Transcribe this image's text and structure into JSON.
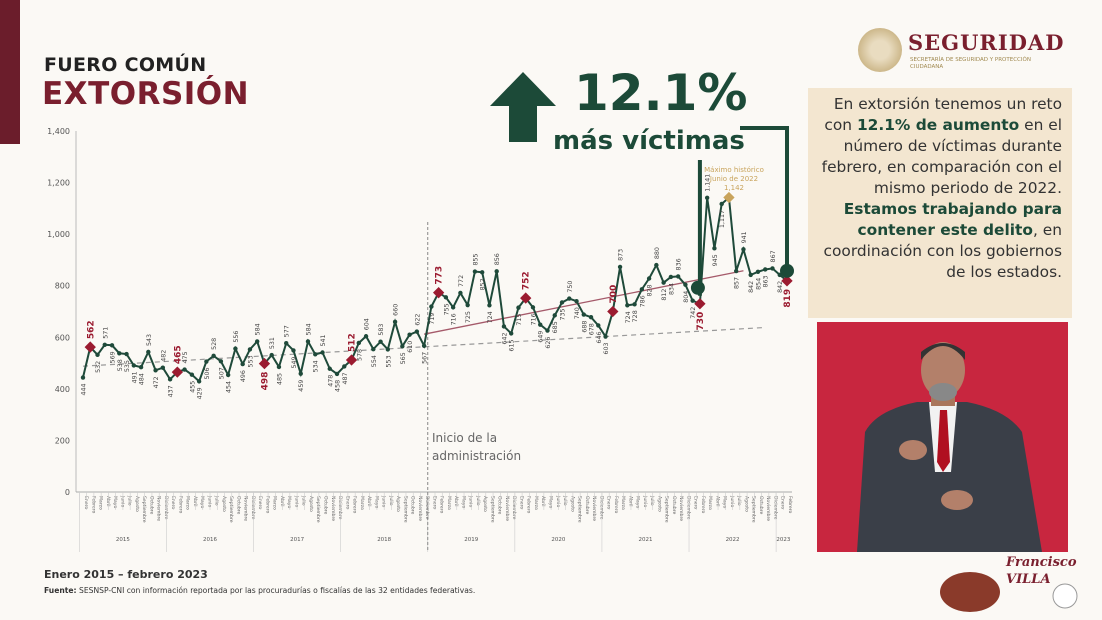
{
  "header": {
    "kicker": "FUERO COMÚN",
    "title": "EXTORSIÓN"
  },
  "logo": {
    "word": "SEGURIDAD",
    "subtitle": "SECRETARÍA DE SEGURIDAD Y PROTECCIÓN CIUDADANA"
  },
  "callout": {
    "percent": "12.1%",
    "label": "más víctimas",
    "arrow_icon": "arrow-up-icon"
  },
  "side_text": {
    "part1": "En extorsión tenemos un reto con ",
    "bold1": "12.1% de aumento",
    "part2": " en el número de víctimas durante febrero, en comparación con el mismo periodo de 2022. ",
    "bold2": "Estamos trabajando para contener este delito",
    "part3": ", en coordinación con los gobiernos de los estados."
  },
  "footer": {
    "range": "Enero 2015 – febrero 2023",
    "source_label": "Fuente:",
    "source": " SESNSP-CNI con información reportada por las procuradurías o fiscalías de las 32 entidades federativas."
  },
  "brand2": {
    "text": "Francisco VILLA"
  },
  "colors": {
    "line": "#1f4a3a",
    "highlight": "#9b1b30",
    "trend": "#a55a6a",
    "peak": "#c9a45c",
    "accent": "#1c4a38"
  },
  "chart_data": {
    "type": "line",
    "ylim": [
      0,
      1400
    ],
    "yticks": [
      0,
      200,
      400,
      600,
      800,
      1000,
      1200,
      1400
    ],
    "ytick_labels": [
      "0",
      "200",
      "400",
      "600",
      "800",
      "1,000",
      "1,200",
      "1,400"
    ],
    "years": [
      "2015",
      "2016",
      "2017",
      "2018",
      "2019",
      "2020",
      "2021",
      "2022",
      "2023"
    ],
    "months": [
      "Enero",
      "Febrero",
      "Marzo",
      "Abril",
      "Mayo",
      "Junio",
      "Julio",
      "Agosto",
      "Septiembre",
      "Octubre",
      "Noviembre",
      "Diciembre"
    ],
    "values": [
      444,
      562,
      532,
      571,
      569,
      538,
      535,
      491,
      484,
      543,
      472,
      482,
      437,
      465,
      475,
      455,
      429,
      506,
      528,
      507,
      454,
      556,
      496,
      553,
      584,
      498,
      531,
      485,
      577,
      549,
      459,
      584,
      534,
      541,
      478,
      458,
      487,
      512,
      578,
      604,
      554,
      583,
      553,
      660,
      565,
      610,
      622,
      567,
      719,
      773,
      755,
      716,
      772,
      725,
      855,
      852,
      724,
      856,
      642,
      615,
      715,
      752,
      716,
      649,
      626,
      685,
      735,
      750,
      740,
      688,
      678,
      646,
      603,
      700,
      873,
      724,
      728,
      786,
      828,
      880,
      812,
      834,
      836,
      804,
      742,
      730,
      1141,
      945,
      1117,
      1142,
      857,
      941,
      842,
      854,
      863,
      867,
      842,
      819
    ],
    "highlighted_months": [
      "Febrero"
    ],
    "annotations": {
      "admin": "Inicio de la administración",
      "admin_line1": "Inicio de la",
      "admin_line2": "administración",
      "peak_l1": "Máximo histórico",
      "peak_l2": "Junio de 2022",
      "peak_l3": "1,142"
    },
    "grid": false
  }
}
